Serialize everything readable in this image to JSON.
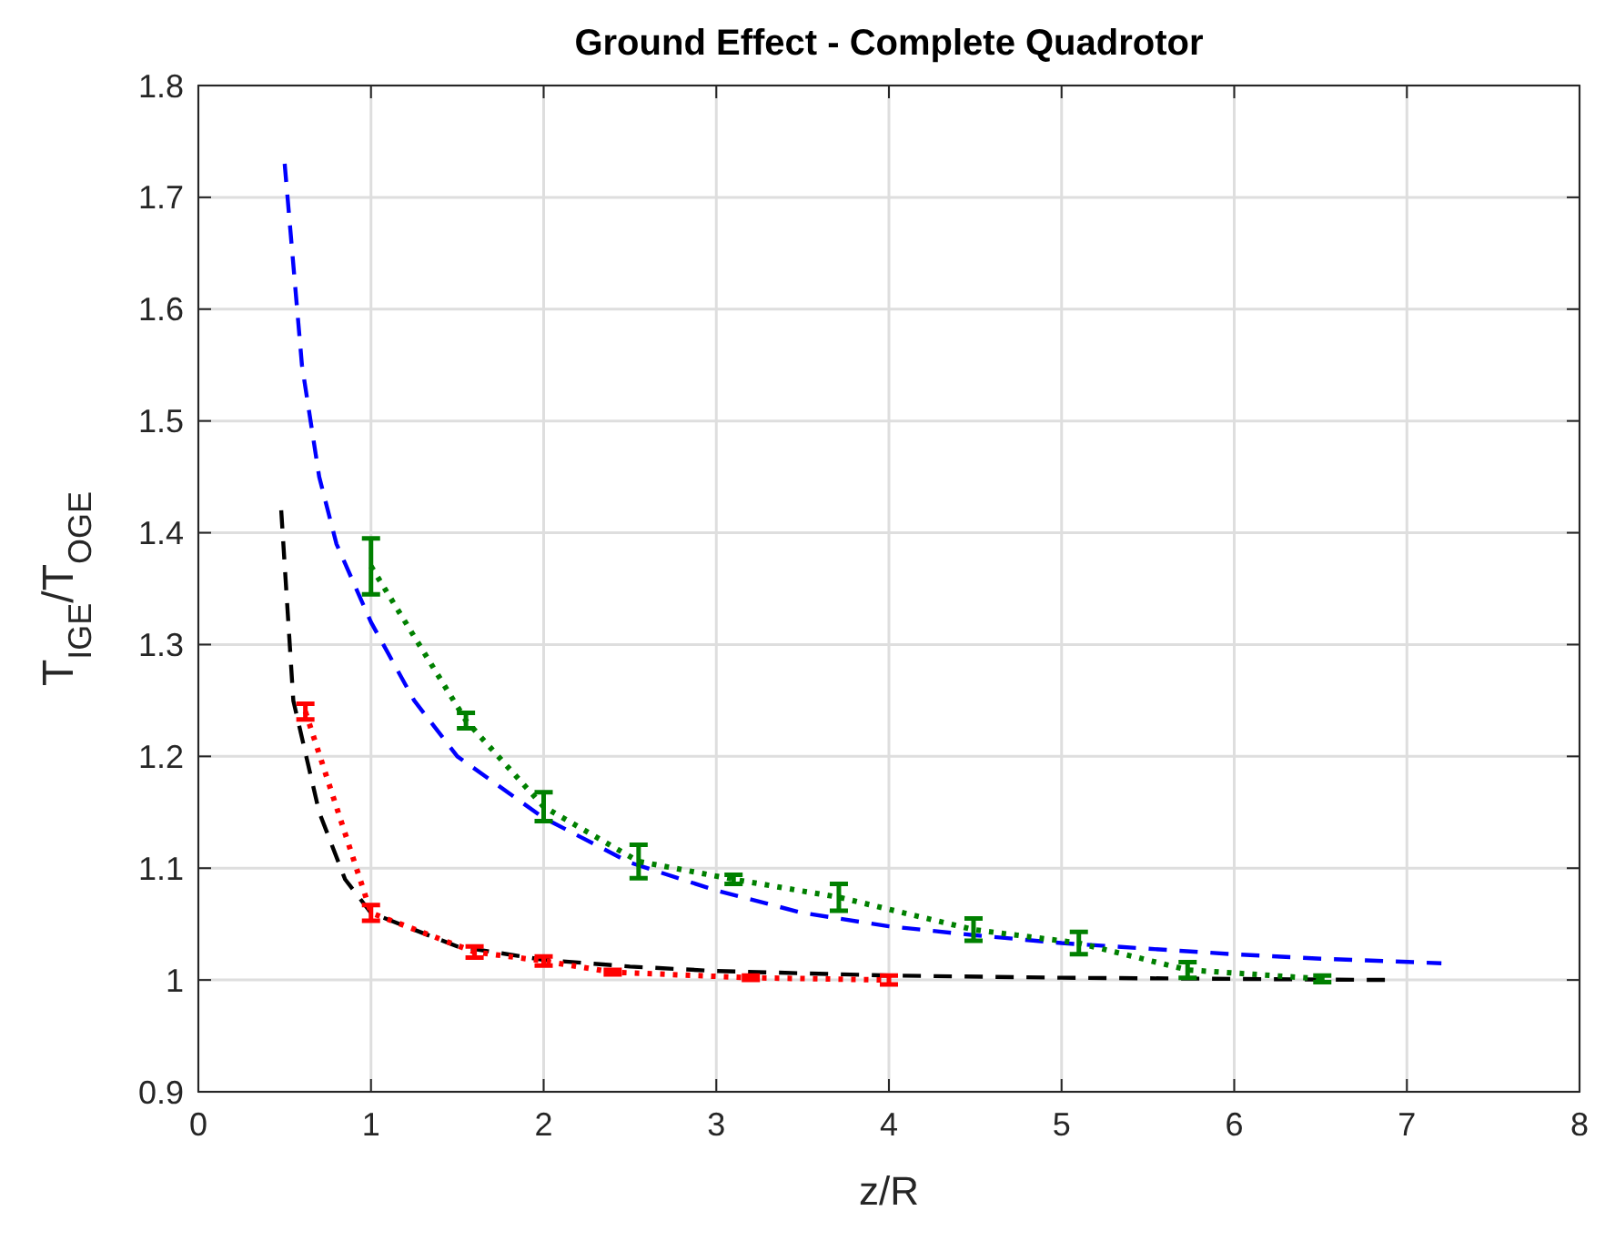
{
  "chart_data": {
    "type": "line",
    "title": "Ground Effect - Complete Quadrotor",
    "xlabel": "z/R",
    "ylabel": "T$_{IGE}$/T$_{OGE}$",
    "xlim": [
      0,
      8
    ],
    "ylim": [
      0.9,
      1.8
    ],
    "xticks": [
      0,
      1,
      2,
      3,
      4,
      5,
      6,
      7,
      8
    ],
    "yticks": [
      0.9,
      1,
      1.1,
      1.2,
      1.3,
      1.4,
      1.5,
      1.6,
      1.7,
      1.8
    ],
    "grid": true,
    "series": [
      {
        "color": "#0000ff",
        "line_style": "dashed",
        "x": [
          0.5,
          0.6,
          0.7,
          0.8,
          1.0,
          1.25,
          1.5,
          2,
          2.5,
          3,
          3.5,
          4,
          4.5,
          5,
          5.5,
          6,
          6.5,
          7.2
        ],
        "values": [
          1.73,
          1.55,
          1.45,
          1.39,
          1.32,
          1.25,
          1.2,
          1.145,
          1.105,
          1.08,
          1.06,
          1.048,
          1.04,
          1.033,
          1.028,
          1.023,
          1.019,
          1.015
        ]
      },
      {
        "color": "#000000",
        "line_style": "dashed",
        "x": [
          0.48,
          0.55,
          0.7,
          0.85,
          1,
          1.5,
          2,
          2.5,
          3,
          4,
          5,
          6,
          6.9
        ],
        "values": [
          1.42,
          1.25,
          1.15,
          1.09,
          1.06,
          1.03,
          1.018,
          1.012,
          1.008,
          1.004,
          1.002,
          1.001,
          1.0
        ]
      },
      {
        "color": "#ff0000",
        "line_style": "dotted",
        "x": [
          0.62,
          1.0,
          1.6,
          2.0,
          2.4,
          3.2,
          4.0
        ],
        "values": [
          1.24,
          1.06,
          1.025,
          1.017,
          1.007,
          1.002,
          1.0
        ],
        "errors": [
          0.007,
          0.007,
          0.005,
          0.004,
          0.002,
          0.002,
          0.004
        ]
      },
      {
        "color": "#008000",
        "line_style": "dotted",
        "x": [
          1.0,
          1.55,
          2.0,
          2.55,
          3.1,
          3.71,
          4.49,
          5.1,
          5.73,
          6.51
        ],
        "values": [
          1.37,
          1.232,
          1.155,
          1.106,
          1.09,
          1.074,
          1.045,
          1.033,
          1.009,
          1.001
        ],
        "errors": [
          0.025,
          0.007,
          0.013,
          0.015,
          0.004,
          0.012,
          0.01,
          0.01,
          0.007,
          0.003
        ]
      }
    ]
  }
}
